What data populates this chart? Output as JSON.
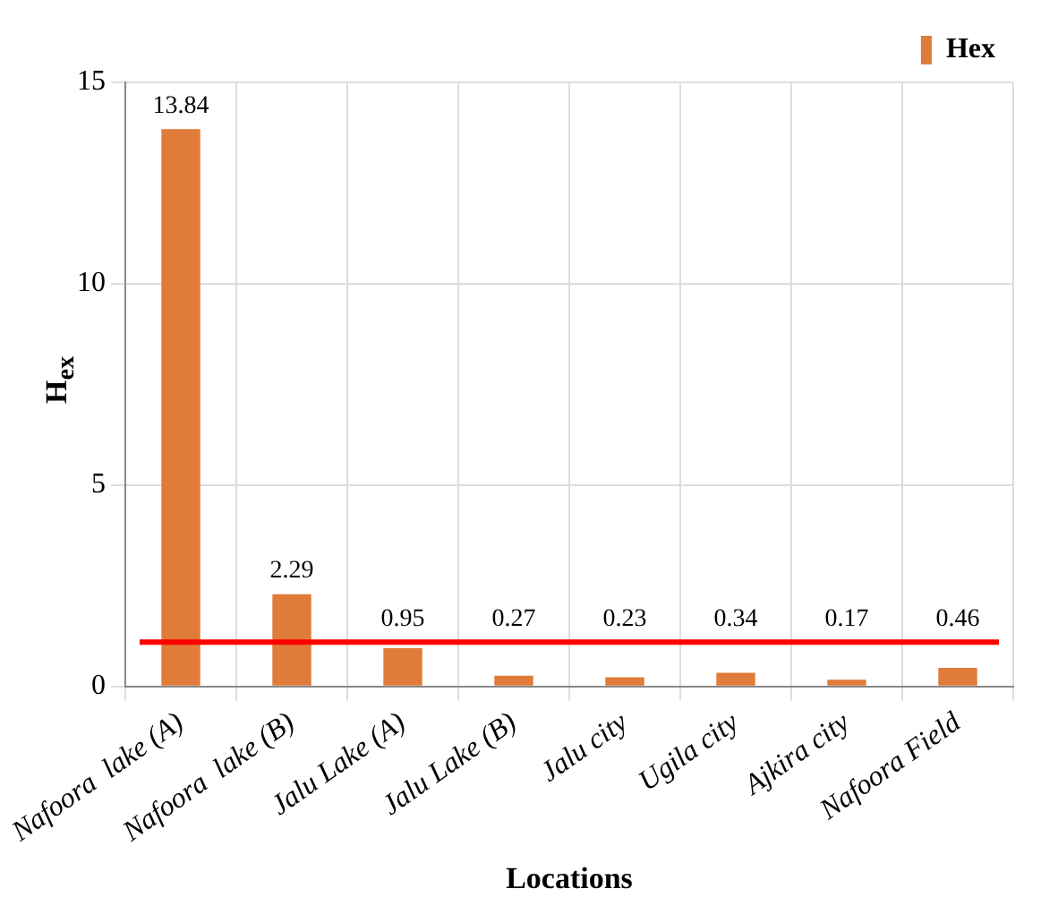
{
  "chart_data": {
    "type": "bar",
    "xlabel": "Locations",
    "ylabel": "H$_{ex}$",
    "categories": [
      "Nafoora  lake (A)",
      "Nafoora  lake (B)",
      "Jalu Lake (A)",
      "Jalu Lake (B)",
      "Jalu city",
      "Ugila city",
      "Ajkira city",
      "Nafoora Field"
    ],
    "series": [
      {
        "name": "Hex",
        "color": "#e07b39",
        "values": [
          13.84,
          2.29,
          0.95,
          0.27,
          0.23,
          0.34,
          0.17,
          0.46
        ]
      }
    ],
    "ylim": [
      0,
      15
    ],
    "yticks": [
      0,
      5,
      10,
      15
    ],
    "grid": true,
    "legend": "top right",
    "data_labels": true,
    "ref_lines": [
      {
        "axis": "y",
        "value": 1.1,
        "color": "#ff0000"
      }
    ]
  }
}
